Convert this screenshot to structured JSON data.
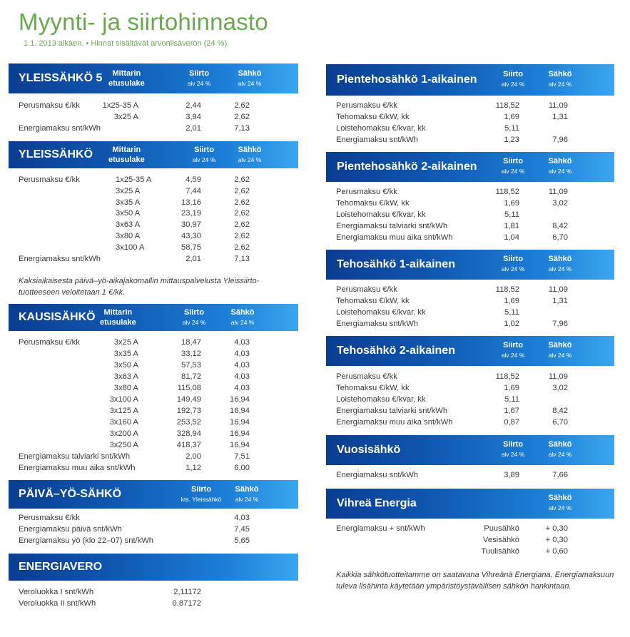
{
  "title": "Myynti- ja siirtohinnasto",
  "subtitle": "1.1. 2013 alkaen. • Hinnat sisältävät arvonlisäveron (24 %).",
  "hdr": {
    "siirto": "Siirto",
    "sahko": "Sähkö",
    "alv": "alv 24 %",
    "mittarin": "Mittarin",
    "etusulake": "etusulake",
    "kts": "kts. Yleissähkö"
  },
  "colors": {
    "title_green": "#6aa84f",
    "band_dark": "#0a3d91",
    "band_light": "#3aa6f0"
  },
  "y5": {
    "name": "YLEISSÄHKÖ 5",
    "rows": [
      {
        "label": "Perusmaksu €/kk",
        "fuse": "1x25-35 A",
        "siirto": "2,44",
        "sahko": "2,62"
      },
      {
        "label": "",
        "fuse": "3x25 A",
        "siirto": "3,94",
        "sahko": "2,62"
      },
      {
        "label": "Energiamaksu snt/kWh",
        "fuse": "",
        "siirto": "2,01",
        "sahko": "7,13"
      }
    ]
  },
  "ys": {
    "name": "YLEISSÄHKÖ",
    "rows": [
      {
        "label": "Perusmaksu €/kk",
        "fuse": "1x25-35 A",
        "siirto": "4,59",
        "sahko": "2,62"
      },
      {
        "label": "",
        "fuse": "3x25 A",
        "siirto": "7,44",
        "sahko": "2,62"
      },
      {
        "label": "",
        "fuse": "3x35 A",
        "siirto": "13,16",
        "sahko": "2,62"
      },
      {
        "label": "",
        "fuse": "3x50 A",
        "siirto": "23,19",
        "sahko": "2,62"
      },
      {
        "label": "",
        "fuse": "3x63 A",
        "siirto": "30,97",
        "sahko": "2,62"
      },
      {
        "label": "",
        "fuse": "3x80 A",
        "siirto": "43,30",
        "sahko": "2,62"
      },
      {
        "label": "",
        "fuse": "3x100 A",
        "siirto": "58,75",
        "sahko": "2,62"
      },
      {
        "label": "Energiamaksu snt/kWh",
        "fuse": "",
        "siirto": "2,01",
        "sahko": "7,13"
      }
    ],
    "note1": "Kaksiaikaisesta päivä–yö-aikajakomallin mittauspalvelusta Yleissiirto-",
    "note2": "tuotteeseen veloitetaan 1 €/kk."
  },
  "ks": {
    "name": "KAUSISÄHKÖ",
    "rows": [
      {
        "label": "Perusmaksu €/kk",
        "fuse": "3x25 A",
        "siirto": "18,47",
        "sahko": "4,03"
      },
      {
        "label": "",
        "fuse": "3x35 A",
        "siirto": "33,12",
        "sahko": "4,03"
      },
      {
        "label": "",
        "fuse": "3x50 A",
        "siirto": "57,53",
        "sahko": "4,03"
      },
      {
        "label": "",
        "fuse": "3x63 A",
        "siirto": "81,72",
        "sahko": "4,03"
      },
      {
        "label": "",
        "fuse": "3x80 A",
        "siirto": "115,08",
        "sahko": "4,03"
      },
      {
        "label": "",
        "fuse": "3x100 A",
        "siirto": "149,49",
        "sahko": "16,94"
      },
      {
        "label": "",
        "fuse": "3x125 A",
        "siirto": "192,73",
        "sahko": "16,94"
      },
      {
        "label": "",
        "fuse": "3x160 A",
        "siirto": "253,52",
        "sahko": "16,94"
      },
      {
        "label": "",
        "fuse": "3x200 A",
        "siirto": "328,94",
        "sahko": "16,94"
      },
      {
        "label": "",
        "fuse": "3x250 A",
        "siirto": "418,37",
        "sahko": "16,94"
      },
      {
        "label": "Energiamaksu talviarki snt/kWh",
        "fuse": "",
        "siirto": "2,00",
        "sahko": "7,51"
      },
      {
        "label": "Energiamaksu muu aika snt/kWh",
        "fuse": "",
        "siirto": "1,12",
        "sahko": "6,00"
      }
    ]
  },
  "py": {
    "name": "PÄIVÄ–YÖ-SÄHKÖ",
    "rows": [
      {
        "label": "Perusmaksu €/kk",
        "sahko": "4,03"
      },
      {
        "label": "Energiamaksu päivä snt/kWh",
        "sahko": "7,45"
      },
      {
        "label": "Energiamaksu yö (klo 22–07) snt/kWh",
        "sahko": "5,65"
      }
    ]
  },
  "ev": {
    "name": "ENERGIAVERO",
    "rows": [
      {
        "label": "Veroluokka I snt/kWh",
        "value": "2,11172"
      },
      {
        "label": "Veroluokka II snt/kWh",
        "value": "0,87172"
      }
    ]
  },
  "p1": {
    "name": "Pientehosähkö 1-aikainen",
    "rows": [
      {
        "label": "Perusmaksu €/kk",
        "siirto": "118,52",
        "sahko": "11,09"
      },
      {
        "label": "Tehomaksu €/kW, kk",
        "siirto": "1,69",
        "sahko": "1,31"
      },
      {
        "label": "Loistehomaksu €/kvar, kk",
        "siirto": "5,11",
        "sahko": ""
      },
      {
        "label": "Energiamaksu snt/kWh",
        "siirto": "1,23",
        "sahko": "7,96"
      }
    ]
  },
  "p2": {
    "name": "Pientehosähkö 2-aikainen",
    "rows": [
      {
        "label": "Perusmaksu €/kk",
        "siirto": "118,52",
        "sahko": "11,09"
      },
      {
        "label": "Tehomaksu €/kW, kk",
        "siirto": "1,69",
        "sahko": "3,02"
      },
      {
        "label": "Loistehomaksu €/kvar, kk",
        "siirto": "5,11",
        "sahko": ""
      },
      {
        "label": "Energiamaksu talviarki snt/kWh",
        "siirto": "1,81",
        "sahko": "8,42"
      },
      {
        "label": "Energiamaksu muu aika snt/kWh",
        "siirto": "1,04",
        "sahko": "6,70"
      }
    ]
  },
  "t1": {
    "name": "Tehosähkö 1-aikainen",
    "rows": [
      {
        "label": "Perusmaksu €/kk",
        "siirto": "118,52",
        "sahko": "11,09"
      },
      {
        "label": "Tehomaksu €/kW, kk",
        "siirto": "1,69",
        "sahko": "1,31"
      },
      {
        "label": "Loistehomaksu €/kvar, kk",
        "siirto": "5,11",
        "sahko": ""
      },
      {
        "label": "Energiamaksu snt/kWh",
        "siirto": "1,02",
        "sahko": "7,96"
      }
    ]
  },
  "t2": {
    "name": "Tehosähkö 2-aikainen",
    "rows": [
      {
        "label": "Perusmaksu €/kk",
        "siirto": "118,52",
        "sahko": "11,09"
      },
      {
        "label": "Tehomaksu €/kW, kk",
        "siirto": "1,69",
        "sahko": "3,02"
      },
      {
        "label": "Loistehomaksu €/kvar, kk",
        "siirto": "5,11",
        "sahko": ""
      },
      {
        "label": "Energiamaksu talviarki snt/kWh",
        "siirto": "1,67",
        "sahko": "8,42"
      },
      {
        "label": "Energiamaksu muu aika snt/kWh",
        "siirto": "0,87",
        "sahko": "6,70"
      }
    ]
  },
  "vs": {
    "name": "Vuosisähkö",
    "rows": [
      {
        "label": "Energiamaksu snt/kWh",
        "siirto": "3,89",
        "sahko": "7,66"
      }
    ]
  },
  "ve": {
    "name": "Vihreä Energia",
    "label": "Energiamaksu + snt/kWh",
    "rows": [
      {
        "source": "Puusähkö",
        "value": "+ 0,30"
      },
      {
        "source": "Vesisähkö",
        "value": "+ 0,30"
      },
      {
        "source": "Tuulisähkö",
        "value": "+ 0,60"
      }
    ],
    "note1": "Kaikkia sähkötuotteitamme on saatavana Vihreänä Energiana. Energiamaksuun",
    "note2": "tuleva lisähinta käytetään ympäristöystävällisen sähkön hankintaan."
  }
}
